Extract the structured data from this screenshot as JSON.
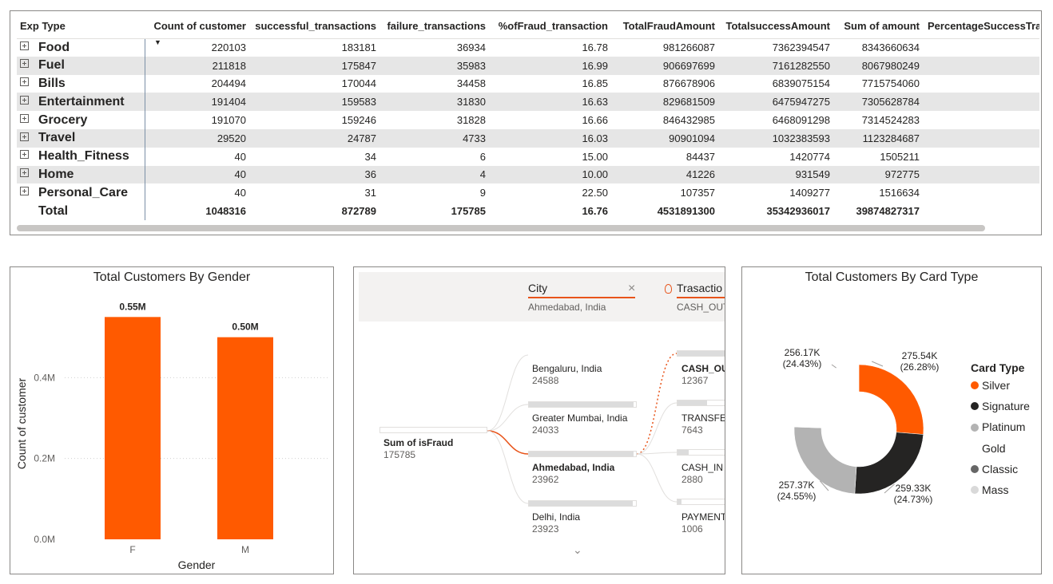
{
  "table": {
    "columns": [
      "Exp Type",
      "Count of customer",
      "successful_transactions",
      "failure_transactions",
      "%ofFraud_transaction",
      "TotalFraudAmount",
      "TotalsuccessAmount",
      "Sum of amount",
      "PercentageSuccessTrar"
    ],
    "rows": [
      {
        "exp": "Food",
        "count": "220103",
        "success": "183181",
        "failure": "36934",
        "pct": "16.78",
        "fraud_amt": "981266087",
        "success_amt": "7362394547",
        "sum": "8343660634"
      },
      {
        "exp": "Fuel",
        "count": "211818",
        "success": "175847",
        "failure": "35983",
        "pct": "16.99",
        "fraud_amt": "906697699",
        "success_amt": "7161282550",
        "sum": "8067980249"
      },
      {
        "exp": "Bills",
        "count": "204494",
        "success": "170044",
        "failure": "34458",
        "pct": "16.85",
        "fraud_amt": "876678906",
        "success_amt": "6839075154",
        "sum": "7715754060"
      },
      {
        "exp": "Entertainment",
        "count": "191404",
        "success": "159583",
        "failure": "31830",
        "pct": "16.63",
        "fraud_amt": "829681509",
        "success_amt": "6475947275",
        "sum": "7305628784"
      },
      {
        "exp": "Grocery",
        "count": "191070",
        "success": "159246",
        "failure": "31828",
        "pct": "16.66",
        "fraud_amt": "846432985",
        "success_amt": "6468091298",
        "sum": "7314524283"
      },
      {
        "exp": "Travel",
        "count": "29520",
        "success": "24787",
        "failure": "4733",
        "pct": "16.03",
        "fraud_amt": "90901094",
        "success_amt": "1032383593",
        "sum": "1123284687"
      },
      {
        "exp": "Health_Fitness",
        "count": "40",
        "success": "34",
        "failure": "6",
        "pct": "15.00",
        "fraud_amt": "84437",
        "success_amt": "1420774",
        "sum": "1505211"
      },
      {
        "exp": "Home",
        "count": "40",
        "success": "36",
        "failure": "4",
        "pct": "10.00",
        "fraud_amt": "41226",
        "success_amt": "931549",
        "sum": "972775"
      },
      {
        "exp": "Personal_Care",
        "count": "40",
        "success": "31",
        "failure": "9",
        "pct": "22.50",
        "fraud_amt": "107357",
        "success_amt": "1409277",
        "sum": "1516634"
      }
    ],
    "total": {
      "exp": "Total",
      "count": "1048316",
      "success": "872789",
      "failure": "175785",
      "pct": "16.76",
      "fraud_amt": "4531891300",
      "success_amt": "35342936017",
      "sum": "39874827317"
    }
  },
  "gender_chart": {
    "title": "Total Customers By Gender",
    "chart_data": {
      "type": "bar",
      "categories": [
        "F",
        "M"
      ],
      "values": [
        550000,
        500000
      ],
      "data_labels": [
        "0.55M",
        "0.50M"
      ],
      "xlabel": "Gender",
      "ylabel": "Count of customer",
      "yticks": [
        0,
        200000,
        400000
      ],
      "ytick_labels": [
        "0.0M",
        "0.2M",
        "0.4M"
      ],
      "ylim": [
        0,
        600000
      ],
      "bar_color": "#FF5A00"
    }
  },
  "decomp_tree": {
    "level1": {
      "label": "City",
      "value": "Ahmedabad, India"
    },
    "level2": {
      "label": "Trasactio",
      "value": "CASH_OUT"
    },
    "root": {
      "label": "Sum of isFraud",
      "value": "175785"
    },
    "cities": [
      {
        "name": "Bengaluru, India",
        "value": "24588",
        "share": 1.0,
        "selected": false
      },
      {
        "name": "Greater Mumbai, India",
        "value": "24033",
        "share": 0.977,
        "selected": false
      },
      {
        "name": "Ahmedabad, India",
        "value": "23962",
        "share": 0.975,
        "selected": true
      },
      {
        "name": "Delhi, India",
        "value": "23923",
        "share": 0.973,
        "selected": false
      }
    ],
    "types": [
      {
        "name": "CASH_OUT",
        "value": "12367",
        "share": 1.0,
        "selected": true
      },
      {
        "name": "TRANSFER",
        "value": "7643",
        "share": 0.62,
        "selected": false
      },
      {
        "name": "CASH_IN",
        "value": "2880",
        "share": 0.23,
        "selected": false
      },
      {
        "name": "PAYMENT",
        "value": "1006",
        "share": 0.08,
        "selected": false
      }
    ],
    "accent_color": "#E8541A"
  },
  "card_chart": {
    "title": "Total Customers By Card Type",
    "legend_title": "Card Type",
    "chart_data": {
      "type": "pie",
      "categories": [
        "Silver",
        "Signature",
        "Platinum",
        "Gold",
        "Classic",
        "Mass"
      ],
      "values": [
        275540,
        259330,
        257370,
        256170,
        0,
        0
      ],
      "colors": [
        "#FF5A00",
        "#252423",
        "#B3B3B3",
        "#FFFFFF",
        "#666666",
        "#D9D9D9"
      ],
      "slice_labels": [
        {
          "value": "275.54K",
          "pct": "(26.28%)"
        },
        {
          "value": "259.33K",
          "pct": "(24.73%)"
        },
        {
          "value": "257.37K",
          "pct": "(24.55%)"
        },
        {
          "value": "256.17K",
          "pct": "(24.43%)"
        }
      ]
    }
  }
}
